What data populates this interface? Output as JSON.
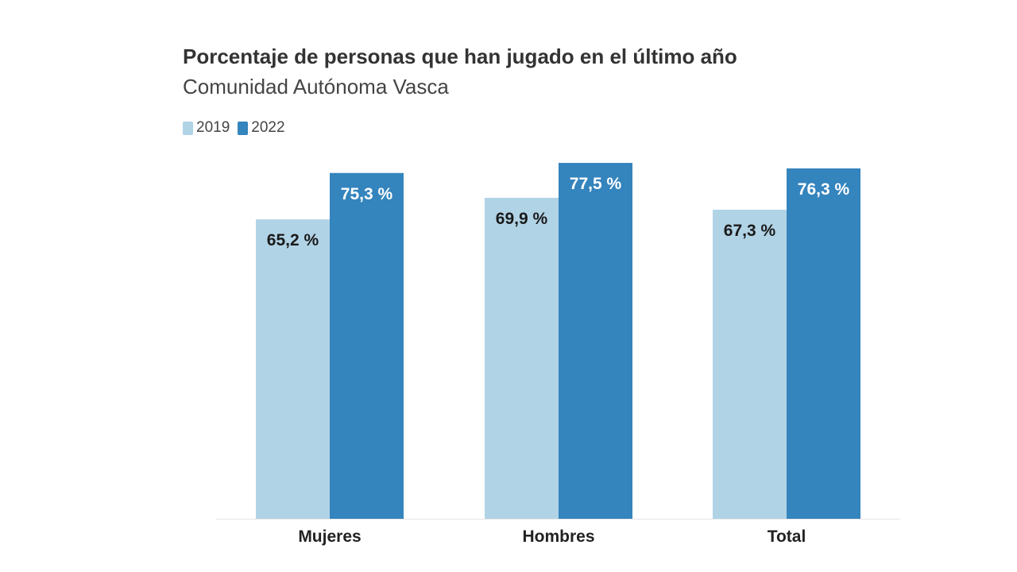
{
  "chart_data": {
    "type": "bar",
    "title": "Porcentaje de personas que han jugado en el último año",
    "subtitle": "Comunidad Autónoma Vasca",
    "categories": [
      "Mujeres",
      "Hombres",
      "Total"
    ],
    "series": [
      {
        "name": "2019",
        "values": [
          65.2,
          69.9,
          67.3
        ],
        "labels": [
          "65,2 %",
          "69,9 %",
          "67,3 %"
        ],
        "color": "#b1d3e6",
        "label_color": "#1a1a1a"
      },
      {
        "name": "2022",
        "values": [
          75.3,
          77.5,
          76.3
        ],
        "labels": [
          "75,3 %",
          "77,5 %",
          "76,3 %"
        ],
        "color": "#3484bd",
        "label_color": "#ffffff"
      }
    ],
    "ylim": [
      0,
      100
    ],
    "xlabel": "",
    "ylabel": "",
    "grid": false,
    "legend": "top-left"
  }
}
